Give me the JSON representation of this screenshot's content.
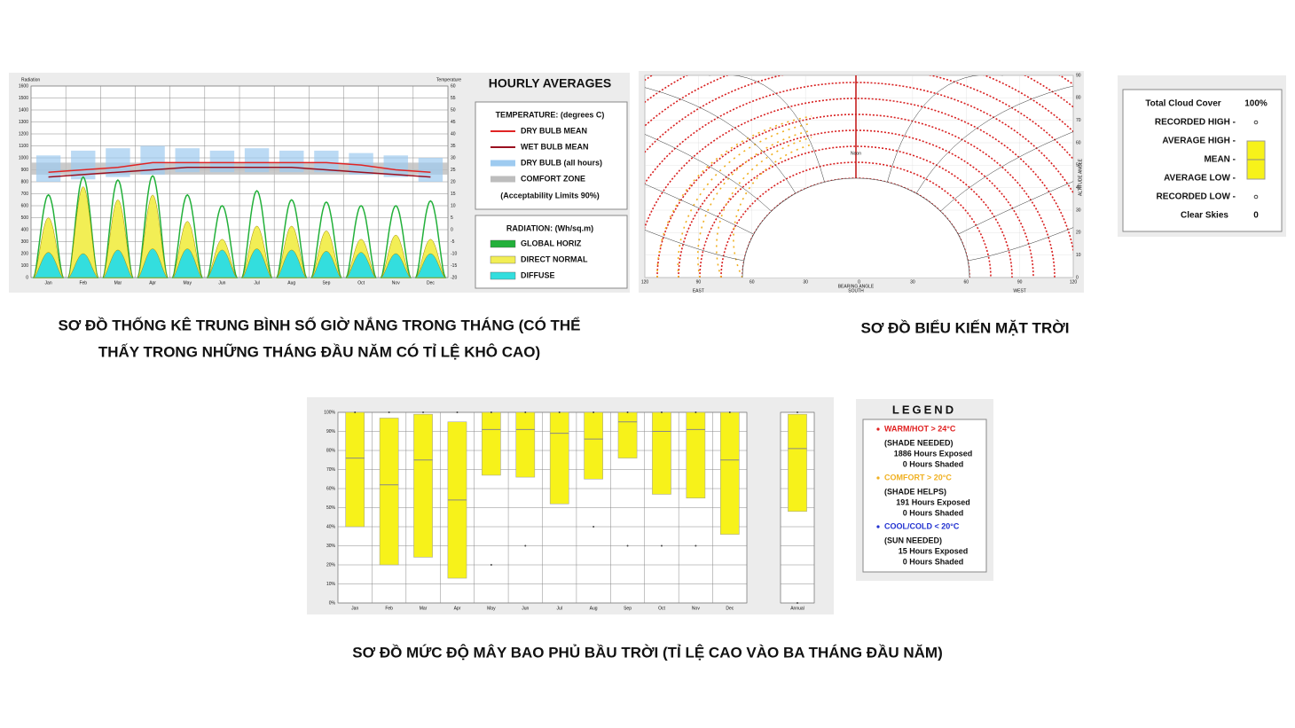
{
  "chart_data": [
    {
      "type": "hourly",
      "title": "HOURLY AVERAGES",
      "y_label": "Radiation",
      "y2_label": "Temperature",
      "caption": [
        "SƠ ĐỒ THỐNG KÊ TRUNG BÌNH SỐ GIỜ NẮNG TRONG THÁNG (CÓ THỂ",
        "THẤY TRONG NHỮNG THÁNG ĐẦU NĂM CÓ TỈ LỆ KHÔ CAO)"
      ],
      "categories": [
        "Jan",
        "Feb",
        "Mar",
        "Apr",
        "May",
        "Jun",
        "Jul",
        "Aug",
        "Sep",
        "Oct",
        "Nov",
        "Dec"
      ],
      "ylim": [
        0,
        1600
      ],
      "yticks": [
        0,
        100,
        200,
        300,
        400,
        500,
        600,
        700,
        800,
        900,
        1000,
        1100,
        1200,
        1300,
        1400,
        1500,
        1600
      ],
      "y2lim": [
        -20,
        60
      ],
      "y2ticks": [
        -20,
        -15,
        -10,
        -5,
        0,
        5,
        10,
        15,
        20,
        25,
        30,
        35,
        40,
        45,
        50,
        55,
        60
      ],
      "grid": true,
      "temperature_title": "TEMPERATURE: (degrees C)",
      "temperature_series": [
        {
          "name": "DRY BULB MEAN",
          "color": "#e02424",
          "axis": "y2",
          "values": [
            24,
            25,
            26,
            28,
            28,
            28,
            28,
            28,
            28,
            27,
            25,
            24
          ]
        },
        {
          "name": "WET BULB MEAN",
          "color": "#9a1020",
          "axis": "y2",
          "values": [
            22,
            23,
            24,
            25,
            26,
            26,
            26,
            26,
            25,
            24,
            23,
            22
          ]
        },
        {
          "name": "DRY BULB (all hours)",
          "color": "#9ecbf0",
          "axis": "y2",
          "low": [
            20,
            21,
            22,
            23,
            24,
            24,
            24,
            24,
            24,
            23,
            22,
            20
          ],
          "high": [
            31,
            33,
            34,
            35,
            34,
            33,
            34,
            33,
            33,
            32,
            31,
            30
          ]
        },
        {
          "name": "COMFORT ZONE",
          "color": "#bdbdbd",
          "axis": "y2",
          "range": [
            23,
            28
          ]
        }
      ],
      "acceptability_note": "(Acceptability Limits 90%)",
      "radiation_title": "RADIATION: (Wh/sq.m)",
      "series": [
        {
          "name": "GLOBAL HORIZ",
          "color": "#22b03a",
          "values": [
            690,
            840,
            815,
            850,
            690,
            600,
            725,
            650,
            630,
            600,
            600,
            640
          ]
        },
        {
          "name": "DIRECT NORMAL",
          "color": "#f2ee55",
          "values": [
            500,
            760,
            650,
            690,
            470,
            320,
            430,
            430,
            390,
            320,
            355,
            320
          ]
        },
        {
          "name": "DIFFUSE",
          "color": "#33dede",
          "values": [
            210,
            200,
            230,
            240,
            240,
            230,
            240,
            230,
            220,
            210,
            200,
            200
          ]
        }
      ]
    },
    {
      "type": "sunpath",
      "caption": "SƠ ĐỒ BIỂU KIẾN MẶT TRỜI",
      "noon_label": "Noon",
      "x_label": "BEARING ANGLE",
      "y_label": "ALTITUDE ANGLE",
      "directions": [
        "EAST",
        "SOUTH",
        "WEST"
      ],
      "xlim": [
        -120,
        120
      ],
      "xticks": [
        {
          "value": -120,
          "label": "120"
        },
        {
          "value": -90,
          "label": "90"
        },
        {
          "value": -60,
          "label": "60"
        },
        {
          "value": -30,
          "label": "30"
        },
        0,
        30,
        60,
        90,
        120
      ],
      "ylim": [
        0,
        90
      ],
      "yticks": [
        0,
        10,
        20,
        30,
        40,
        50,
        60,
        70,
        80,
        90
      ],
      "legend": {
        "title": "LEGEND",
        "groups": [
          {
            "label": "WARM/HOT > 24°C",
            "color": "#e02020",
            "lines": [
              "(SHADE NEEDED)",
              "1886 Hours Exposed",
              "0 Hours Shaded"
            ]
          },
          {
            "label": "COMFORT > 20°C",
            "color": "#f0b020",
            "lines": [
              "(SHADE HELPS)",
              "191 Hours Exposed",
              "0 Hours Shaded"
            ]
          },
          {
            "label": "COOL/COLD < 20°C",
            "color": "#2030d0",
            "lines": [
              "(SUN NEEDED)",
              "15 Hours Exposed",
              "0 Hours Shaded"
            ]
          }
        ]
      }
    },
    {
      "type": "range",
      "caption": "SƠ ĐỒ MỨC ĐỘ MÂY BAO PHỦ BẦU TRỜI (TỈ LỆ CAO VÀO BA THÁNG ĐẦU NĂM)",
      "categories": [
        "Jan",
        "Feb",
        "Mar",
        "Apr",
        "May",
        "Jun",
        "Jul",
        "Aug",
        "Sep",
        "Oct",
        "Nov",
        "Dec",
        "Annual"
      ],
      "ylim": [
        0,
        100
      ],
      "yticks": [
        {
          "value": 0,
          "label": "0%"
        },
        {
          "value": 10,
          "label": "10%"
        },
        {
          "value": 20,
          "label": "20%"
        },
        {
          "value": 30,
          "label": "30%"
        },
        {
          "value": 40,
          "label": "40%"
        },
        {
          "value": 50,
          "label": "50%"
        },
        {
          "value": 60,
          "label": "60%"
        },
        {
          "value": 70,
          "label": "70%"
        },
        {
          "value": 80,
          "label": "80%"
        },
        {
          "value": 90,
          "label": "90%"
        },
        {
          "value": 100,
          "label": "100%"
        }
      ],
      "color": "#f7f21a",
      "key": {
        "title": "Total Cloud Cover",
        "top": "100%",
        "bottom_label": "Clear Skies",
        "bottom": "0"
      },
      "series": [
        {
          "name": "RECORDED HIGH -",
          "values": [
            100,
            100,
            100,
            100,
            100,
            100,
            100,
            100,
            100,
            100,
            100,
            100,
            100
          ]
        },
        {
          "name": "AVERAGE HIGH -",
          "values": [
            100,
            97,
            99,
            95,
            100,
            100,
            100,
            100,
            100,
            100,
            100,
            100,
            99
          ]
        },
        {
          "name": "MEAN -",
          "values": [
            76,
            62,
            75,
            54,
            91,
            91,
            89,
            86,
            95,
            90,
            91,
            75,
            81
          ]
        },
        {
          "name": "AVERAGE LOW -",
          "values": [
            40,
            20,
            24,
            13,
            67,
            66,
            52,
            65,
            76,
            57,
            55,
            36,
            48
          ]
        },
        {
          "name": "RECORDED LOW -",
          "values": [
            null,
            null,
            null,
            null,
            20,
            30,
            null,
            40,
            30,
            30,
            30,
            null,
            0
          ]
        }
      ]
    }
  ]
}
